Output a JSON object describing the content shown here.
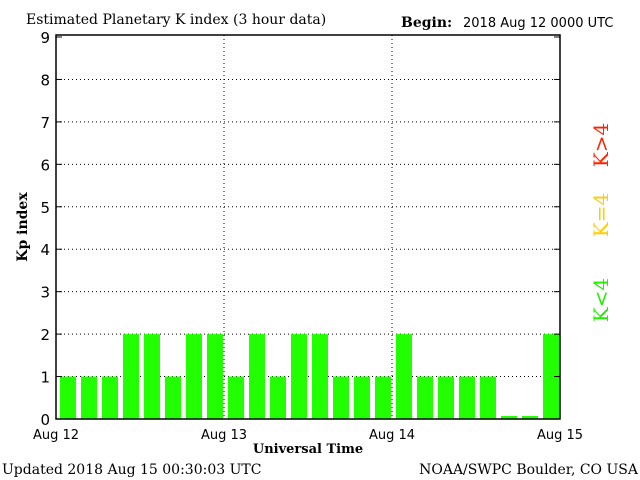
{
  "chart_data": {
    "type": "bar",
    "title": "Estimated Planetary K index (3 hour data)",
    "begin_label": "Begin:",
    "begin_value": "2018 Aug 12 0000 UTC",
    "xlabel": "Universal Time",
    "ylabel": "Kp index",
    "ylim": [
      0,
      9
    ],
    "yticks": [
      "0",
      "1",
      "2",
      "3",
      "4",
      "5",
      "6",
      "7",
      "8",
      "9"
    ],
    "xticks": [
      "Aug 12",
      "Aug 13",
      "Aug 14",
      "Aug 15"
    ],
    "grid": true,
    "values": [
      1,
      1,
      1,
      2,
      2,
      1,
      2,
      2,
      1,
      2,
      1,
      2,
      2,
      1,
      1,
      1,
      2,
      1,
      1,
      1,
      1,
      0.07,
      0.07,
      2
    ],
    "bar_color": "#22ff00",
    "legend": [
      {
        "label": "K<4",
        "color": "#22ee00"
      },
      {
        "label": "K=4",
        "color": "#ffcc00"
      },
      {
        "label": "K>4",
        "color": "#ff2200"
      }
    ],
    "legend_placement": "right",
    "footer_left": "Updated 2018 Aug 15 00:30:03 UTC",
    "footer_right": "NOAA/SWPC Boulder, CO USA"
  }
}
